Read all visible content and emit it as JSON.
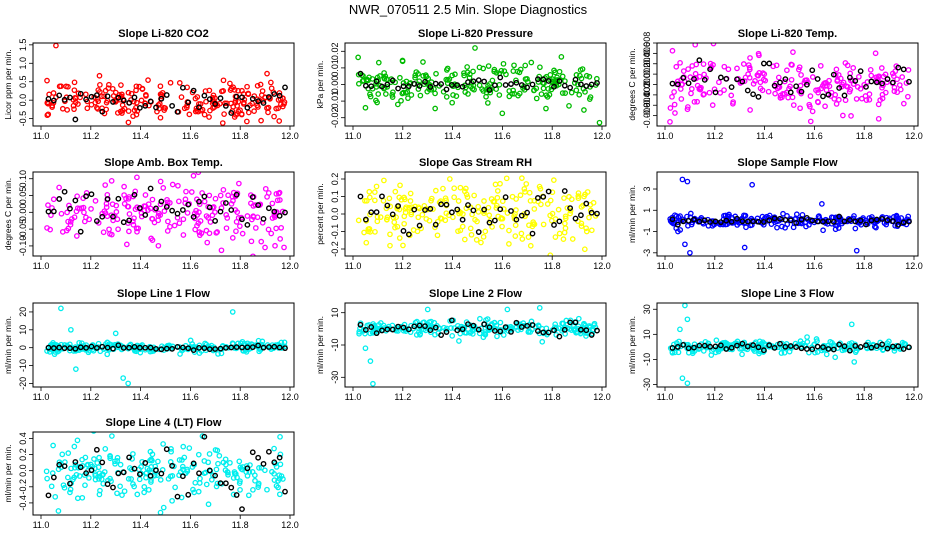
{
  "title": "NWR_070511  2.5 Min. Slope Diagnostics",
  "colors": {
    "black": "#000000"
  },
  "chart_data": [
    {
      "type": "scatter",
      "title": "Slope Li-820 CO2",
      "ylabel": "Licor ppm per min.",
      "color": "#ff0000",
      "xlim": [
        11.0,
        12.0
      ],
      "ylim": [
        -0.7,
        1.55
      ],
      "xticks": [
        11.0,
        11.2,
        11.4,
        11.6,
        11.8,
        12.0
      ],
      "yticks": [
        -0.5,
        0.0,
        0.5,
        1.0,
        1.5
      ],
      "ytick_labels": [
        "-0.5",
        "0.0",
        "0.5",
        "1.0",
        "1.5"
      ],
      "series_spread": 0.25,
      "black_spread": 0.15,
      "outliers": [
        [
          11.06,
          1.48
        ],
        [
          11.73,
          -0.62
        ]
      ]
    },
    {
      "type": "scatter",
      "title": "Slope Li-820 Pressure",
      "ylabel": "kPa per min.",
      "color": "#00bb00",
      "xlim": [
        11.0,
        12.0
      ],
      "ylim": [
        -0.025,
        0.025
      ],
      "xticks": [
        11.0,
        11.2,
        11.4,
        11.6,
        11.8,
        12.0
      ],
      "yticks": [
        -0.02,
        -0.01,
        0.0,
        0.01,
        0.02
      ],
      "ytick_labels": [
        "-0.02",
        "-0.01",
        "0.00",
        "0.01",
        "0.02"
      ],
      "series_spread": 0.006,
      "black_spread": 0.002,
      "outliers": [
        [
          11.49,
          0.022
        ],
        [
          11.99,
          -0.023
        ],
        [
          11.18,
          -0.012
        ],
        [
          11.05,
          -0.014
        ]
      ]
    },
    {
      "type": "scatter",
      "title": "Slope Li-820 Temp.",
      "ylabel": "degrees C per min.",
      "color": "#ff00ff",
      "xlim": [
        11.0,
        12.0
      ],
      "ylim": [
        -0.008,
        0.008
      ],
      "xticks": [
        11.0,
        11.2,
        11.4,
        11.6,
        11.8,
        12.0
      ],
      "yticks": [
        -0.006,
        -0.004,
        -0.002,
        0.0,
        0.002,
        0.004,
        0.006,
        0.008
      ],
      "ytick_labels": [
        "-0.006",
        "-0.004",
        "-0.002",
        "0.000",
        "0.002",
        "0.004",
        "0.006",
        "0.008"
      ],
      "series_spread": 0.0025,
      "black_spread": 0.002,
      "outliers": [
        [
          11.03,
          0.0065
        ],
        [
          11.04,
          -0.0055
        ],
        [
          11.02,
          -0.0072
        ]
      ]
    },
    {
      "type": "scatter",
      "title": "Slope Amb. Box Temp.",
      "ylabel": "degrees C per min.",
      "color": "#ff00ff",
      "xlim": [
        11.0,
        12.0
      ],
      "ylim": [
        -0.13,
        0.12
      ],
      "xticks": [
        11.0,
        11.2,
        11.4,
        11.6,
        11.8,
        12.0
      ],
      "yticks": [
        -0.1,
        -0.05,
        0.0,
        0.05,
        0.1
      ],
      "ytick_labels": [
        "-0.10",
        "-0.05",
        "0.00",
        "0.05",
        "0.10"
      ],
      "series_spread": 0.05,
      "black_spread": 0.03,
      "outliers": []
    },
    {
      "type": "scatter",
      "title": "Slope Gas Stream RH",
      "ylabel": "percent per min.",
      "color": "#ffff00",
      "xlim": [
        11.0,
        12.0
      ],
      "ylim": [
        -0.24,
        0.24
      ],
      "xticks": [
        11.0,
        11.2,
        11.4,
        11.6,
        11.8,
        12.0
      ],
      "yticks": [
        -0.2,
        -0.1,
        0.0,
        0.1,
        0.2
      ],
      "ytick_labels": [
        "-0.2",
        "-0.1",
        "0.0",
        "0.1",
        "0.2"
      ],
      "series_spread": 0.09,
      "black_spread": 0.06,
      "outliers": []
    },
    {
      "type": "scatter",
      "title": "Slope Sample Flow",
      "ylabel": "ml/min per min.",
      "color": "#0000ff",
      "xlim": [
        11.0,
        12.0
      ],
      "ylim": [
        -3.3,
        4.6
      ],
      "xticks": [
        11.0,
        11.2,
        11.4,
        11.6,
        11.8,
        12.0
      ],
      "yticks": [
        -3,
        -1,
        1,
        3
      ],
      "ytick_labels": [
        "-3",
        "-1",
        "1",
        "3"
      ],
      "series_spread": 0.3,
      "black_spread": 0.15,
      "outliers": [
        [
          11.07,
          3.9
        ],
        [
          11.09,
          3.7
        ],
        [
          11.1,
          -3.0
        ],
        [
          11.08,
          -2.2
        ],
        [
          11.35,
          3.4
        ],
        [
          11.32,
          -2.5
        ],
        [
          11.77,
          -2.8
        ],
        [
          11.63,
          1.6
        ]
      ]
    },
    {
      "type": "scatter",
      "title": "Slope Line 1 Flow",
      "ylabel": "ml/min per min.",
      "color": "#00eeee",
      "xlim": [
        11.0,
        12.0
      ],
      "ylim": [
        -22,
        25
      ],
      "xticks": [
        11.0,
        11.2,
        11.4,
        11.6,
        11.8,
        12.0
      ],
      "yticks": [
        -20,
        -10,
        0,
        10,
        20
      ],
      "ytick_labels": [
        "-20",
        "-10",
        "0",
        "10",
        "20"
      ],
      "series_spread": 1.5,
      "black_spread": 0.6,
      "outliers": [
        [
          11.08,
          22
        ],
        [
          11.12,
          10
        ],
        [
          11.14,
          -12
        ],
        [
          11.35,
          -20
        ],
        [
          11.33,
          -17
        ],
        [
          11.77,
          20
        ],
        [
          11.3,
          8
        ]
      ]
    },
    {
      "type": "scatter",
      "title": "Slope Line 2 Flow",
      "ylabel": "ml/min per min.",
      "color": "#00eeee",
      "xlim": [
        11.0,
        12.0
      ],
      "ylim": [
        -36,
        16
      ],
      "xticks": [
        11.0,
        11.2,
        11.4,
        11.6,
        11.8,
        12.0
      ],
      "yticks": [
        -30,
        -10,
        10
      ],
      "ytick_labels": [
        "-30",
        "-10",
        "10"
      ],
      "series_spread": 2.5,
      "black_spread": 2.0,
      "outliers": [
        [
          11.08,
          -34
        ],
        [
          11.07,
          -20
        ],
        [
          11.05,
          -12
        ],
        [
          11.3,
          12
        ],
        [
          11.75,
          13
        ],
        [
          11.76,
          -8
        ],
        [
          11.62,
          12
        ]
      ]
    },
    {
      "type": "scatter",
      "title": "Slope Line 3 Flow",
      "ylabel": "ml/min per min.",
      "color": "#00eeee",
      "xlim": [
        11.0,
        12.0
      ],
      "ylim": [
        -32,
        35
      ],
      "xticks": [
        11.0,
        11.2,
        11.4,
        11.6,
        11.8,
        12.0
      ],
      "yticks": [
        -30,
        -10,
        10,
        30
      ],
      "ytick_labels": [
        "-30",
        "-10",
        "10",
        "30"
      ],
      "series_spread": 2.5,
      "black_spread": 1.5,
      "outliers": [
        [
          11.08,
          33
        ],
        [
          11.09,
          22
        ],
        [
          11.07,
          -25
        ],
        [
          11.09,
          -29
        ],
        [
          11.06,
          14
        ],
        [
          11.75,
          18
        ],
        [
          11.76,
          -12
        ]
      ]
    },
    {
      "type": "scatter",
      "title": "Slope Line 4 (LT) Flow",
      "ylabel": "ml/min per min.",
      "color": "#00eeee",
      "xlim": [
        11.0,
        12.0
      ],
      "ylim": [
        -0.55,
        0.48
      ],
      "xticks": [
        11.0,
        11.2,
        11.4,
        11.6,
        11.8,
        12.0
      ],
      "yticks": [
        -0.4,
        -0.2,
        0.0,
        0.2,
        0.4
      ],
      "ytick_labels": [
        "-0.4",
        "-0.2",
        "0.0",
        "0.2",
        "0.4"
      ],
      "series_spread": 0.18,
      "black_spread": 0.2,
      "outliers": [
        [
          11.07,
          -0.5
        ],
        [
          11.48,
          -0.52
        ],
        [
          11.96,
          0.42
        ]
      ]
    }
  ]
}
